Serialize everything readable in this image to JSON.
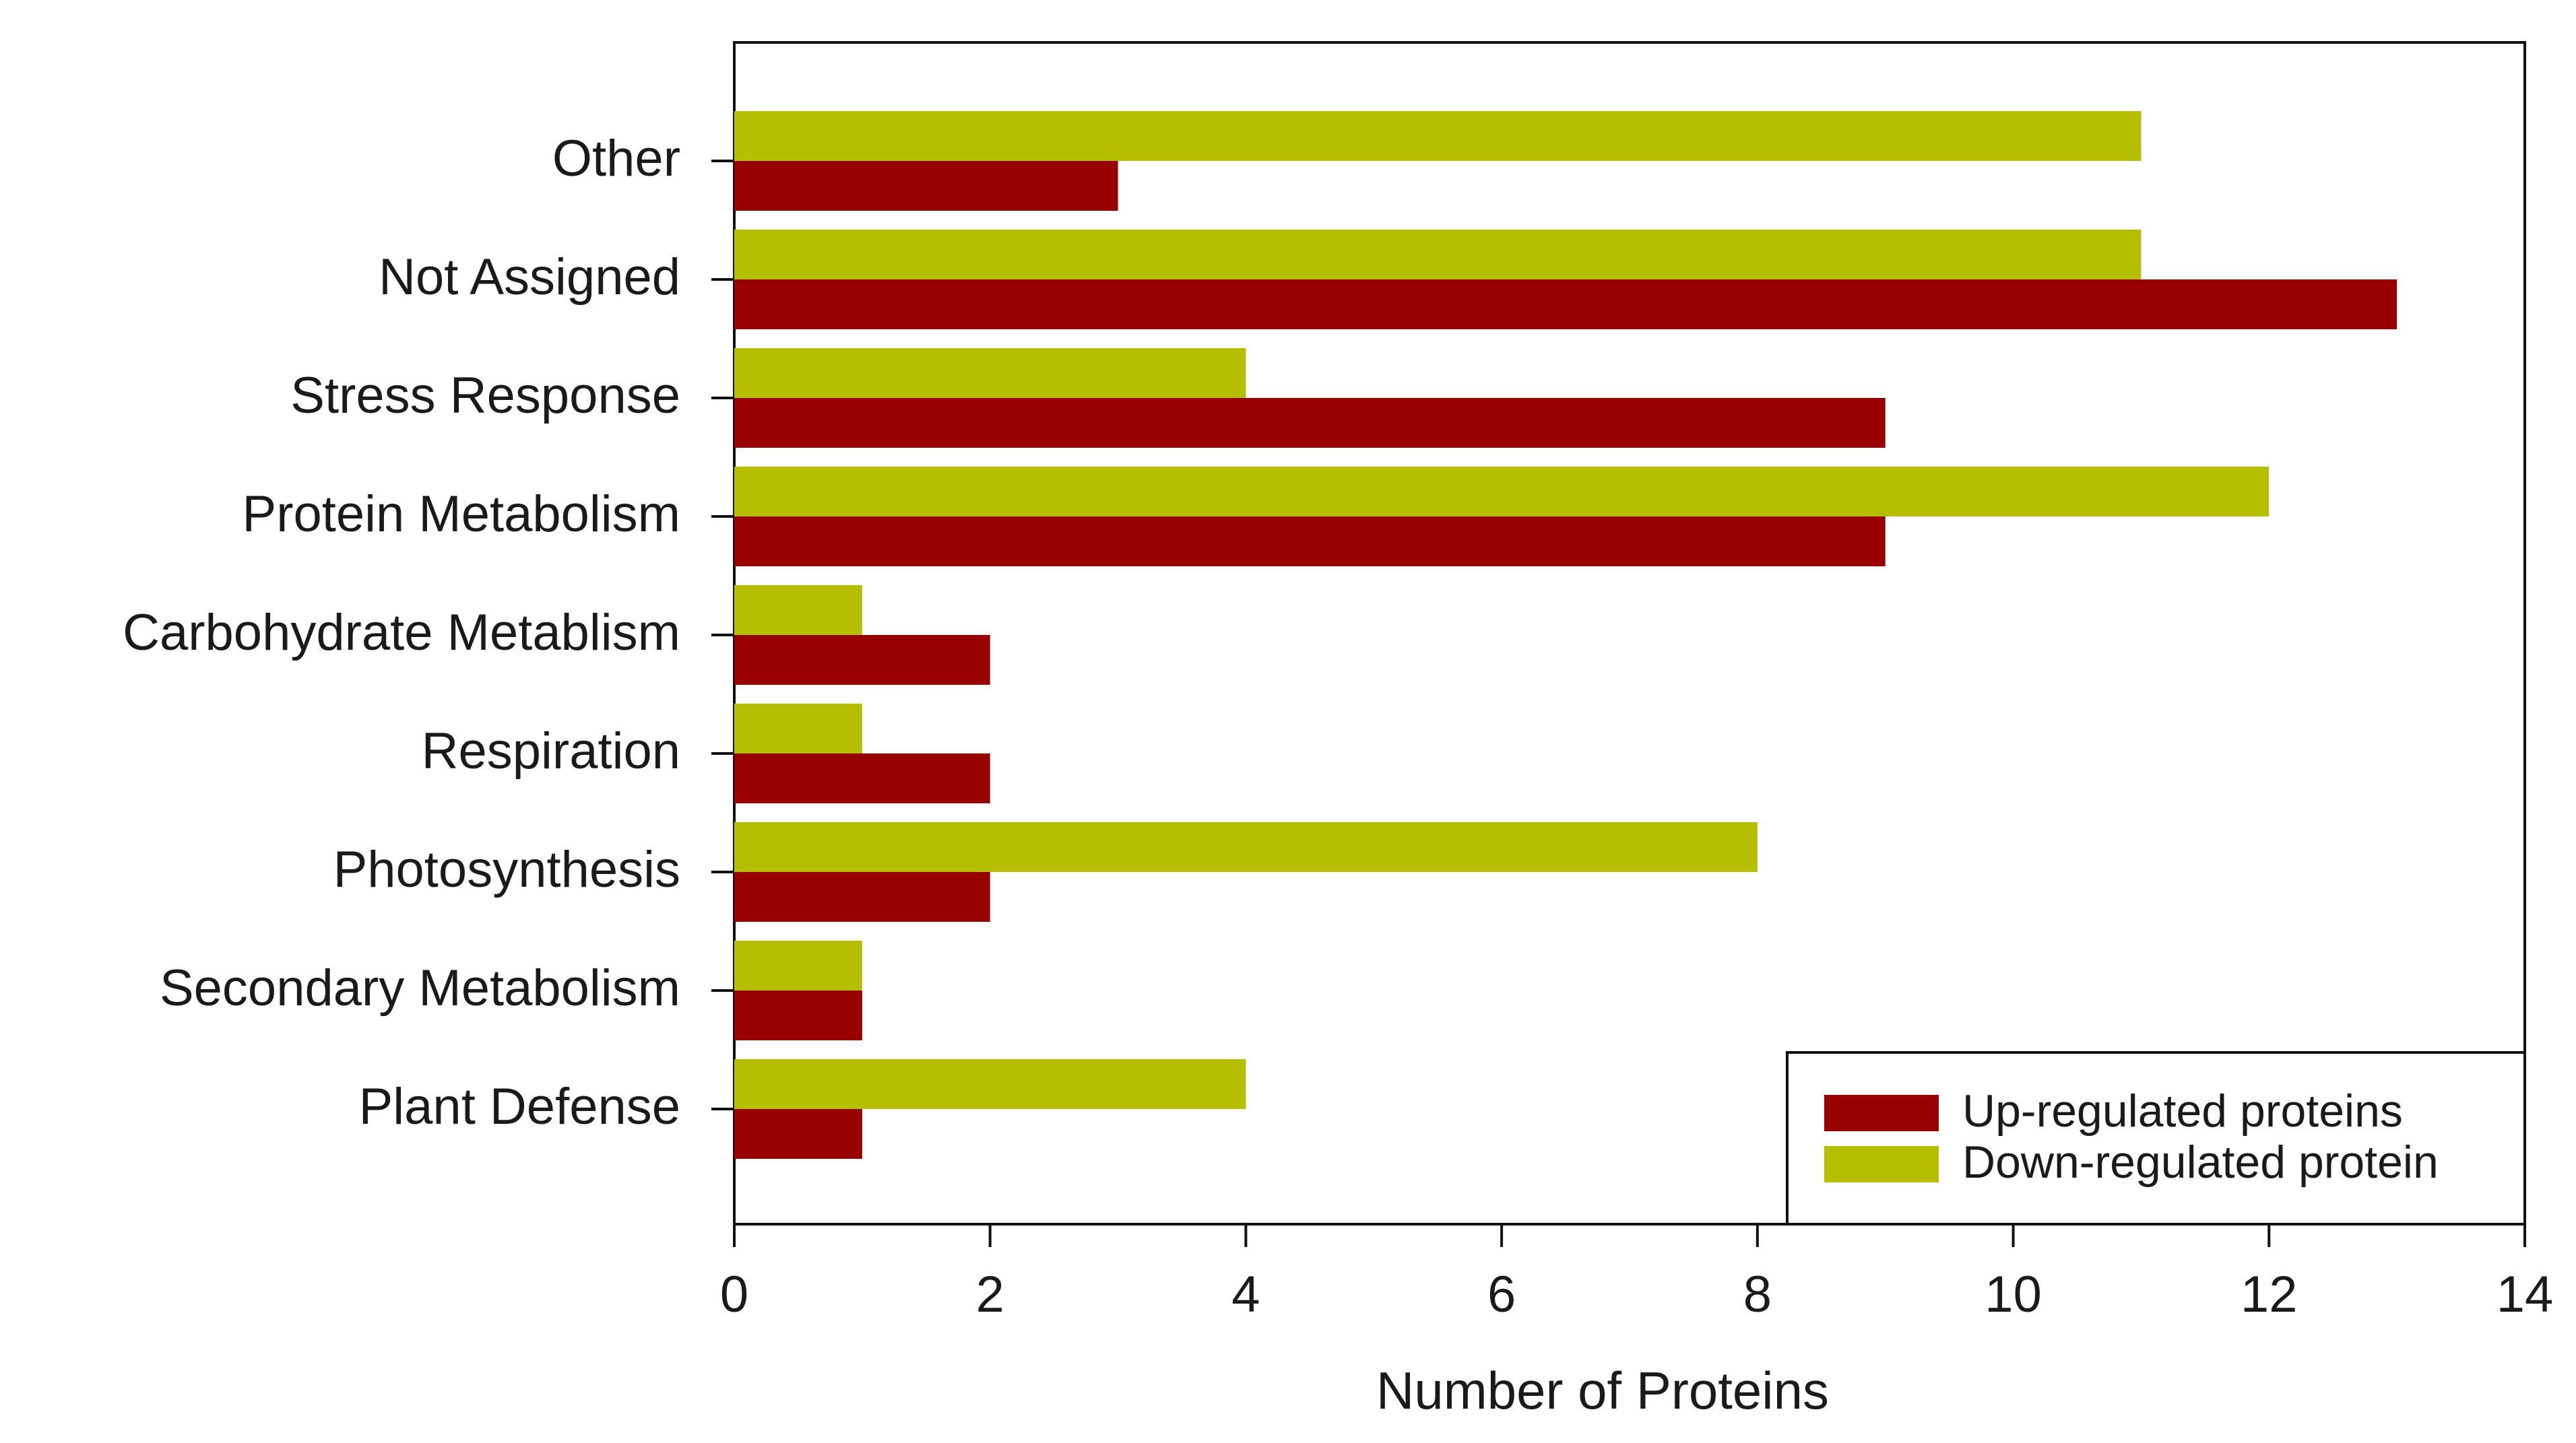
{
  "chart_data": {
    "type": "bar",
    "orientation": "horizontal",
    "categories": [
      "Other",
      "Not Assigned",
      "Stress Response",
      "Protein Metabolism",
      "Carbohydrate Metablism",
      "Respiration",
      "Photosynthesis",
      "Secondary Metabolism",
      "Plant Defense"
    ],
    "series": [
      {
        "name": "Down-regulated protein",
        "color": "#b5bf00",
        "values": [
          11,
          11,
          4,
          12,
          1,
          1,
          8,
          1,
          4
        ]
      },
      {
        "name": "Up-regulated proteins",
        "color": "#990000",
        "values": [
          3,
          13,
          9,
          9,
          2,
          2,
          2,
          1,
          1
        ]
      }
    ],
    "legend_order": [
      "Up-regulated proteins",
      "Down-regulated protein"
    ],
    "legend_position": "bottom-right",
    "title": "",
    "xlabel": "Number of Proteins",
    "ylabel": "",
    "xlim": [
      0,
      14
    ],
    "xticks": [
      0,
      2,
      4,
      6,
      8,
      10,
      12,
      14
    ],
    "grid": false
  }
}
